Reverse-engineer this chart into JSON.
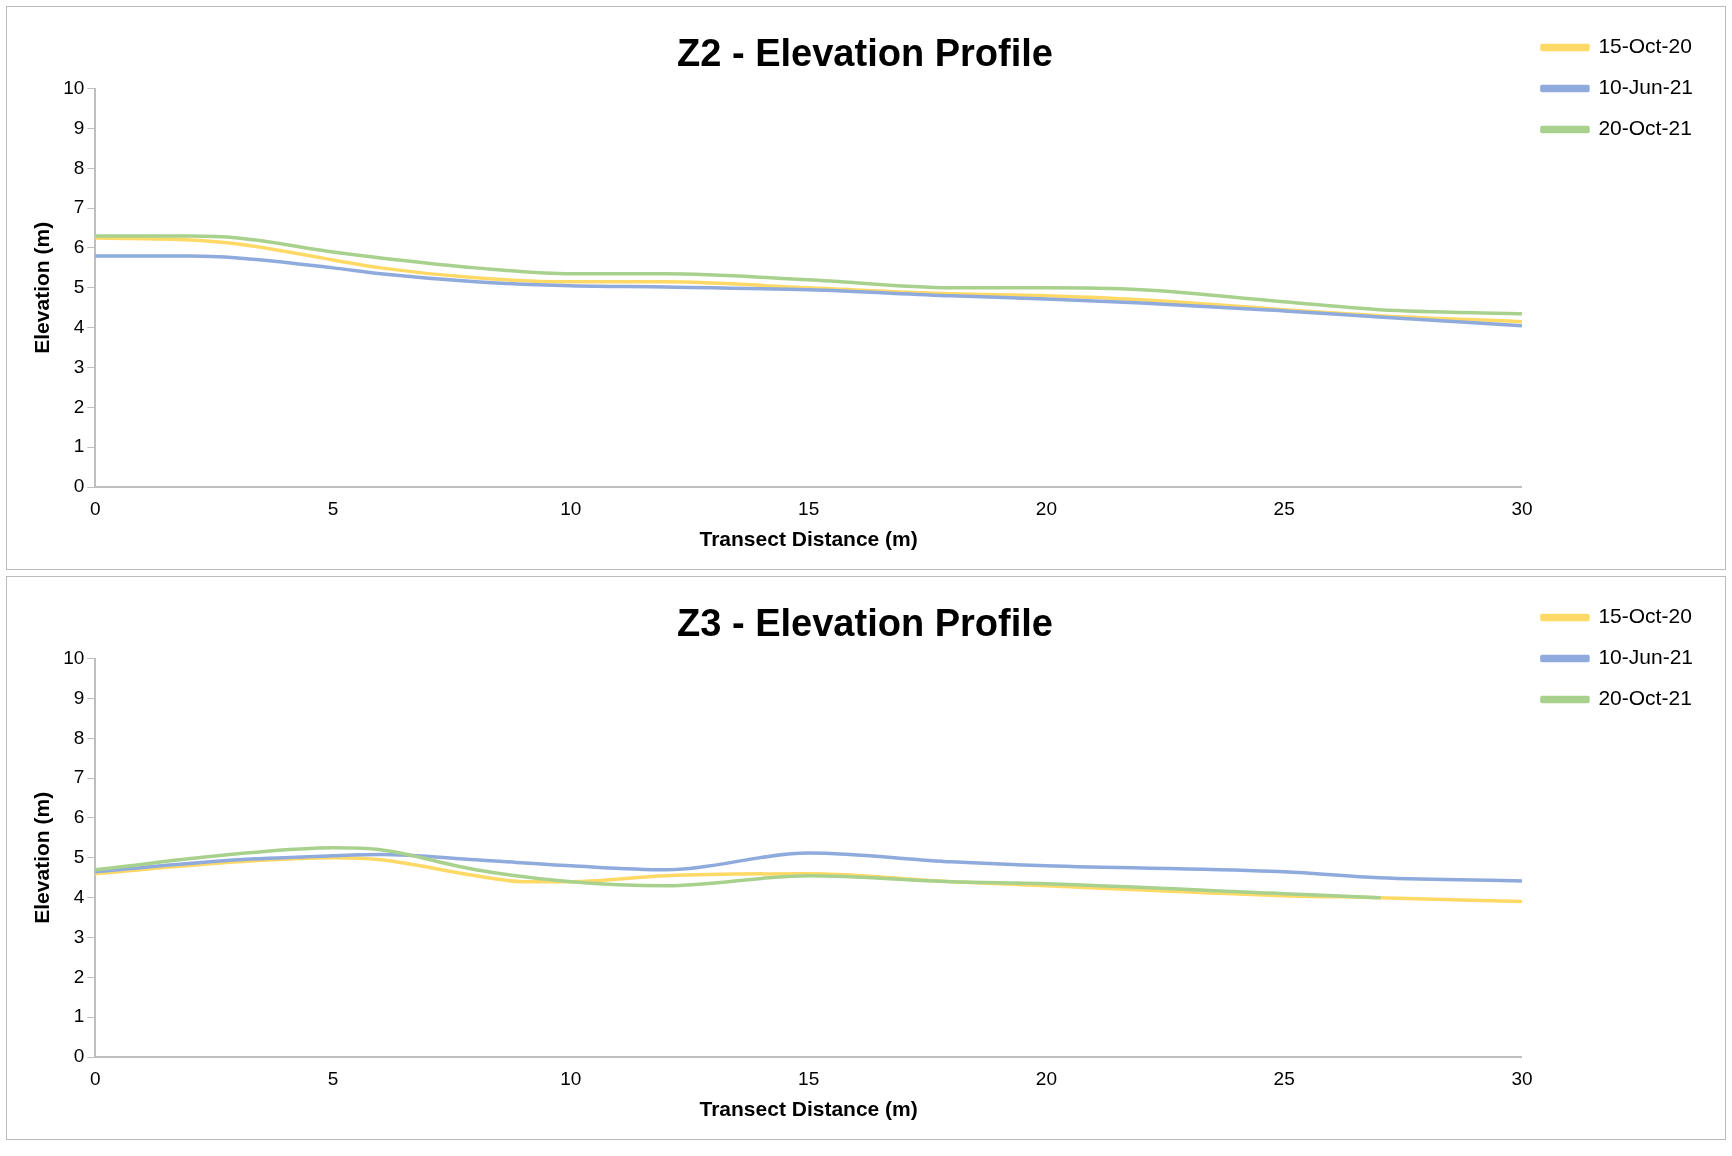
{
  "chart_data": [
    {
      "type": "line",
      "title": "Z2 - Elevation Profile",
      "xlabel": "Transect Distance (m)",
      "ylabel": "Elevation (m)",
      "xlim": [
        0,
        30
      ],
      "xticks": [
        0,
        5,
        10,
        15,
        20,
        25,
        30
      ],
      "ylim": [
        0,
        10
      ],
      "yticks": [
        0,
        1,
        2,
        3,
        4,
        5,
        6,
        7,
        8,
        9,
        10
      ],
      "legend": "top right",
      "marker": "none",
      "line_style": "solid",
      "series": [
        {
          "name": "15-Oct-20",
          "color": "#ffd966",
          "x": [
            0,
            2,
            3,
            5,
            6,
            8,
            10,
            12,
            15,
            18,
            20,
            22,
            25,
            27,
            30
          ],
          "values": [
            6.25,
            6.2,
            6.1,
            5.7,
            5.5,
            5.25,
            5.15,
            5.15,
            5.0,
            4.85,
            4.8,
            4.7,
            4.45,
            4.3,
            4.15
          ]
        },
        {
          "name": "10-Jun-21",
          "color": "#8faadc",
          "x": [
            0,
            2,
            3,
            5,
            6,
            8,
            10,
            12,
            15,
            18,
            20,
            22,
            25,
            27,
            30
          ],
          "values": [
            5.8,
            5.8,
            5.75,
            5.5,
            5.35,
            5.15,
            5.05,
            5.02,
            4.95,
            4.8,
            4.72,
            4.62,
            4.42,
            4.27,
            4.05
          ]
        },
        {
          "name": "20-Oct-21",
          "color": "#a9d18e",
          "x": [
            0,
            2,
            3,
            5,
            6,
            8,
            10,
            12,
            15,
            18,
            20,
            22,
            25,
            27,
            30
          ],
          "values": [
            6.3,
            6.3,
            6.25,
            5.9,
            5.75,
            5.5,
            5.35,
            5.35,
            5.2,
            5.0,
            5.0,
            4.95,
            4.65,
            4.45,
            4.35
          ]
        }
      ]
    },
    {
      "type": "line",
      "title": "Z3 - Elevation Profile",
      "xlabel": "Transect Distance (m)",
      "ylabel": "Elevation (m)",
      "xlim": [
        0,
        30
      ],
      "xticks": [
        0,
        5,
        10,
        15,
        20,
        25,
        30
      ],
      "ylim": [
        0,
        10
      ],
      "yticks": [
        0,
        1,
        2,
        3,
        4,
        5,
        6,
        7,
        8,
        9,
        10
      ],
      "legend": "top right",
      "marker": "none",
      "line_style": "solid",
      "series": [
        {
          "name": "15-Oct-20",
          "color": "#ffd966",
          "x": [
            0,
            3,
            5,
            6,
            8,
            9,
            10,
            12,
            15,
            18,
            20,
            25,
            27,
            30
          ],
          "values": [
            4.6,
            4.9,
            5.0,
            4.95,
            4.55,
            4.4,
            4.4,
            4.55,
            4.6,
            4.4,
            4.3,
            4.05,
            4.0,
            3.9
          ]
        },
        {
          "name": "10-Jun-21",
          "color": "#8faadc",
          "x": [
            0,
            3,
            5,
            6,
            8,
            10,
            12,
            15,
            18,
            20,
            25,
            27,
            30
          ],
          "values": [
            4.65,
            4.95,
            5.05,
            5.08,
            4.95,
            4.8,
            4.7,
            5.12,
            4.9,
            4.8,
            4.65,
            4.5,
            4.42
          ]
        },
        {
          "name": "20-Oct-21",
          "color": "#a9d18e",
          "x": [
            0,
            3,
            5,
            6,
            8,
            10,
            12,
            15,
            18,
            20,
            25,
            27
          ],
          "values": [
            4.7,
            5.1,
            5.25,
            5.2,
            4.7,
            4.4,
            4.3,
            4.55,
            4.4,
            4.35,
            4.1,
            4.0
          ]
        }
      ]
    }
  ]
}
